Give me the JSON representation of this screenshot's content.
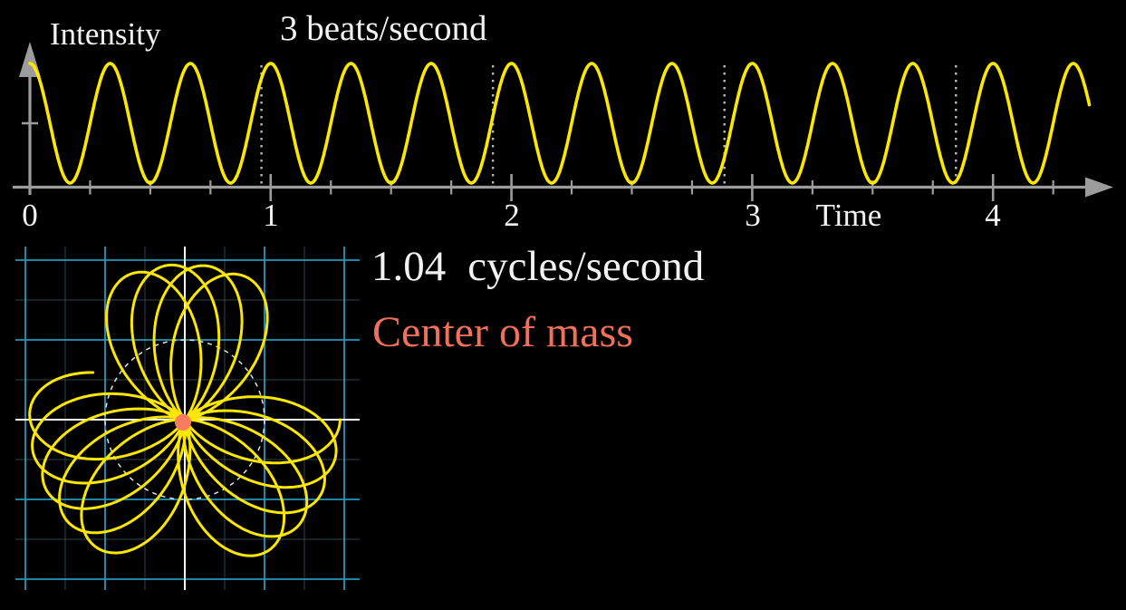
{
  "colors": {
    "background": "#000000",
    "wave_yellow": "#FCE700",
    "axis_gray": "#9C9C9C",
    "label_white": "#F2F2F2",
    "dashed_time_line": "#B8B8B8",
    "grid_major_blue": "#2896BE",
    "grid_minor": "#31434B",
    "plane_axis_white": "#FFFFFF",
    "dashed_circle": "#DDE4E6",
    "center_of_mass_text": "#F0705A",
    "center_of_mass_dot": "#F97B60"
  },
  "top_chart": {
    "title": "3 beats/second",
    "ylabel": "Intensity",
    "xlabel": "Time",
    "x_ticks": [
      {
        "label": "0"
      },
      {
        "label": "1"
      },
      {
        "label": "2"
      },
      {
        "label": "3"
      },
      {
        "label": "4"
      }
    ]
  },
  "winding_panel": {
    "frequency_value": "1.04",
    "frequency_unit": "cycles/second",
    "center_of_mass_label": "Center of mass"
  },
  "chart_data": [
    {
      "id": "intensity-vs-time",
      "type": "line",
      "title": "3 beats/second",
      "xlabel": "Time",
      "ylabel": "Intensity",
      "signal_frequency_hz": 3,
      "amplitude_midline": 1,
      "amplitude_peak": 1.97,
      "amplitude_trough": 0.03,
      "formula": "intensity(t) = 1 + 0.97*cos(2*pi*3*t)",
      "x_range": [
        0,
        4.4
      ],
      "x_tick_values": [
        0,
        1,
        2,
        3,
        4
      ],
      "x_minor_tick_step": 0.25,
      "y_tick_values": [
        1
      ],
      "dashed_vertical_times": [
        0.9615,
        1.9231,
        2.8846,
        3.8462
      ],
      "grid": false,
      "legend": false
    },
    {
      "id": "wound-graph",
      "type": "parametric",
      "winding_frequency_hz": 1.04,
      "signal_frequency_hz": 3,
      "t_range": [
        0,
        4.4
      ],
      "formula": "P(t) = (1 + 0.97*cos(2*pi*3*t)) * (cos(2*pi*1.04*t), -sin(2*pi*1.04*t))",
      "winding_direction": "clockwise",
      "unit_circle_radius": 1,
      "grid_major_step": 1,
      "grid_minor_step": 0.5,
      "x_axis_range": [
        -2.1,
        2.2
      ],
      "y_axis_range": [
        -2.1,
        2.2
      ],
      "center_of_mass_point": [
        0,
        0
      ]
    }
  ]
}
